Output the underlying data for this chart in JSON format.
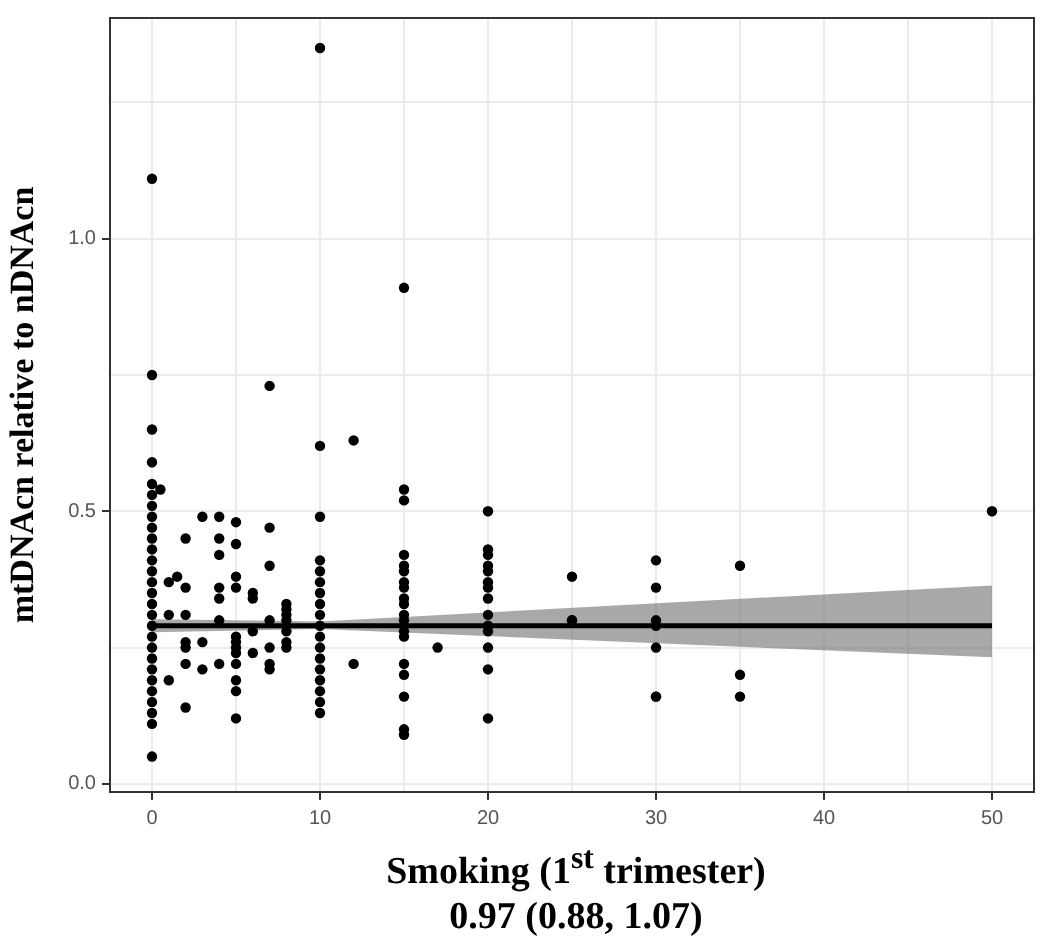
{
  "chart_data": {
    "type": "scatter",
    "xlabel": "Smoking (1$^{st}$ trimester)",
    "ylabel": "mtDNAcn relative to nDNAcn",
    "annotations": [
      "0.97 (0.88, 1.07)"
    ],
    "xlim": [
      -2.5,
      52.5
    ],
    "xticks": [
      0,
      {
        "value": 5,
        "label": null
      },
      10,
      {
        "value": 15,
        "label": null
      },
      20,
      {
        "value": 25,
        "label": null
      },
      30,
      {
        "value": 35,
        "label": null
      },
      40,
      {
        "value": 45,
        "label": null
      },
      50
    ],
    "ylim": [
      -0.015,
      1.405
    ],
    "yticks": [
      {
        "value": 0,
        "label": "0.0"
      },
      {
        "value": 0.25,
        "label": null
      },
      0.5,
      {
        "value": 0.75,
        "label": null
      },
      {
        "value": 1,
        "label": "1.0"
      },
      {
        "value": 1.25,
        "label": null
      }
    ],
    "grid": true,
    "line_style": "solid",
    "series": [
      {
        "marker": "circle",
        "color": "#000000",
        "x": [
          0,
          0,
          0,
          0,
          0,
          0,
          0,
          0,
          0,
          0,
          0,
          0,
          0,
          0,
          0,
          0,
          0,
          0,
          0,
          0,
          0,
          0,
          0,
          0,
          0,
          0,
          0,
          0,
          0.5,
          1,
          1,
          1,
          1.5,
          2,
          2,
          2,
          2,
          2,
          2,
          2,
          3,
          3,
          3,
          4,
          4,
          4,
          4,
          4,
          4,
          4,
          5,
          5,
          5,
          5,
          5,
          5,
          5,
          5,
          5,
          5,
          5,
          5,
          6,
          6,
          6,
          6,
          7,
          7,
          7,
          7,
          7,
          7,
          7,
          8,
          8,
          8,
          8,
          8,
          8,
          8,
          10,
          10,
          10,
          10,
          10,
          10,
          10,
          10,
          10,
          10,
          10,
          10,
          10,
          10,
          10,
          10,
          10,
          10,
          12,
          12,
          15,
          15,
          15,
          15,
          15,
          15,
          15,
          15,
          15,
          15,
          15,
          15,
          15,
          15,
          15,
          15,
          15,
          15,
          15,
          17,
          20,
          20,
          20,
          20,
          20,
          20,
          20,
          20,
          20,
          20,
          20,
          20,
          20,
          20,
          25,
          25,
          25,
          30,
          30,
          30,
          30,
          30,
          30,
          30,
          35,
          35,
          35,
          50
        ],
        "values": [
          0.05,
          0.11,
          0.13,
          0.15,
          0.17,
          0.19,
          0.21,
          0.23,
          0.25,
          0.27,
          0.29,
          0.31,
          0.33,
          0.35,
          0.37,
          0.39,
          0.41,
          0.43,
          0.45,
          0.47,
          0.49,
          0.51,
          0.53,
          0.55,
          0.59,
          0.65,
          0.75,
          1.11,
          0.54,
          0.37,
          0.31,
          0.19,
          0.38,
          0.45,
          0.36,
          0.31,
          0.26,
          0.25,
          0.22,
          0.14,
          0.49,
          0.26,
          0.21,
          0.49,
          0.45,
          0.42,
          0.36,
          0.34,
          0.3,
          0.22,
          0.48,
          0.44,
          0.38,
          0.36,
          0.27,
          0.26,
          0.25,
          0.24,
          0.22,
          0.19,
          0.17,
          0.12,
          0.35,
          0.34,
          0.28,
          0.24,
          0.73,
          0.47,
          0.4,
          0.3,
          0.25,
          0.22,
          0.21,
          0.33,
          0.32,
          0.31,
          0.3,
          0.28,
          0.26,
          0.25,
          1.35,
          0.62,
          0.49,
          0.41,
          0.39,
          0.37,
          0.35,
          0.33,
          0.31,
          0.29,
          0.27,
          0.25,
          0.23,
          0.21,
          0.19,
          0.17,
          0.15,
          0.13,
          0.63,
          0.22,
          0.91,
          0.54,
          0.52,
          0.42,
          0.4,
          0.39,
          0.37,
          0.36,
          0.34,
          0.33,
          0.31,
          0.3,
          0.28,
          0.27,
          0.22,
          0.2,
          0.16,
          0.1,
          0.09,
          0.25,
          0.5,
          0.43,
          0.42,
          0.4,
          0.39,
          0.37,
          0.36,
          0.34,
          0.31,
          0.29,
          0.28,
          0.25,
          0.21,
          0.12,
          0.38,
          0.3,
          0.3,
          0.41,
          0.36,
          0.3,
          0.29,
          0.25,
          0.16,
          0.16,
          0.4,
          0.2,
          0.16,
          0.5
        ]
      },
      {
        "type": "line",
        "marker": "none",
        "color": "#000000",
        "x": [
          0,
          10,
          50
        ],
        "values": [
          0.29,
          0.29,
          0.29
        ],
        "lower": [
          0.278,
          0.284,
          0.232
        ],
        "upper": [
          0.302,
          0.298,
          0.364
        ]
      }
    ]
  }
}
